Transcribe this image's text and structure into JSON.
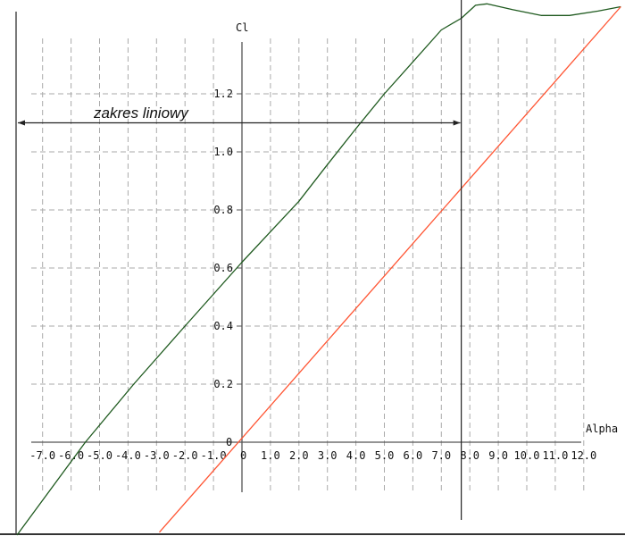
{
  "chart_data": {
    "type": "line",
    "xlabel": "Alpha",
    "ylabel": "Cl",
    "origin_label": "0",
    "xlim": [
      -7.9,
      13.4
    ],
    "ylim": [
      -0.32,
      1.52
    ],
    "grid": true,
    "x_ticks": [
      "-7.0",
      "-6.0",
      "-5.0",
      "-4.0",
      "-3.0",
      "-2.0",
      "-1.0",
      "0",
      "1.0",
      "2.0",
      "3.0",
      "4.0",
      "5.0",
      "6.0",
      "7.0",
      "8.0",
      "9.0",
      "10.0",
      "11.0",
      "12.0"
    ],
    "x_tick_values": [
      -7,
      -6,
      -5,
      -4,
      -3,
      -2,
      -1,
      0,
      1,
      2,
      3,
      4,
      5,
      6,
      7,
      8,
      9,
      10,
      11,
      12
    ],
    "y_ticks": [
      "0.2",
      "0.4",
      "0.6",
      "0.8",
      "1.0",
      "1.2"
    ],
    "y_tick_values": [
      0.2,
      0.4,
      0.6,
      0.8,
      1.0,
      1.2
    ],
    "series": [
      {
        "color": "#1f5a1f",
        "x": [
          -7.9,
          -5.5,
          -3.8,
          -2.0,
          0,
          2.0,
          2.95,
          4.0,
          5.0,
          6.0,
          7.0,
          7.7,
          8.2,
          8.6,
          9.5,
          10.5,
          10.9,
          11.5,
          12.5,
          13.3
        ],
        "y": [
          -0.32,
          0,
          0.2,
          0.4,
          0.62,
          0.83,
          0.95,
          1.08,
          1.2,
          1.31,
          1.42,
          1.46,
          1.505,
          1.51,
          1.49,
          1.47,
          1.47,
          1.47,
          1.485,
          1.5
        ]
      },
      {
        "color": "#ff5533",
        "x": [
          -2.9,
          13.3
        ],
        "y": [
          -0.31,
          1.5
        ]
      }
    ],
    "annotations": [
      {
        "text": "zakres liniowy",
        "type": "double-arrow",
        "x_from": -7.9,
        "x_to": 7.7,
        "y": 1.1
      },
      {
        "type": "vertical-line",
        "x": 7.7
      }
    ]
  }
}
